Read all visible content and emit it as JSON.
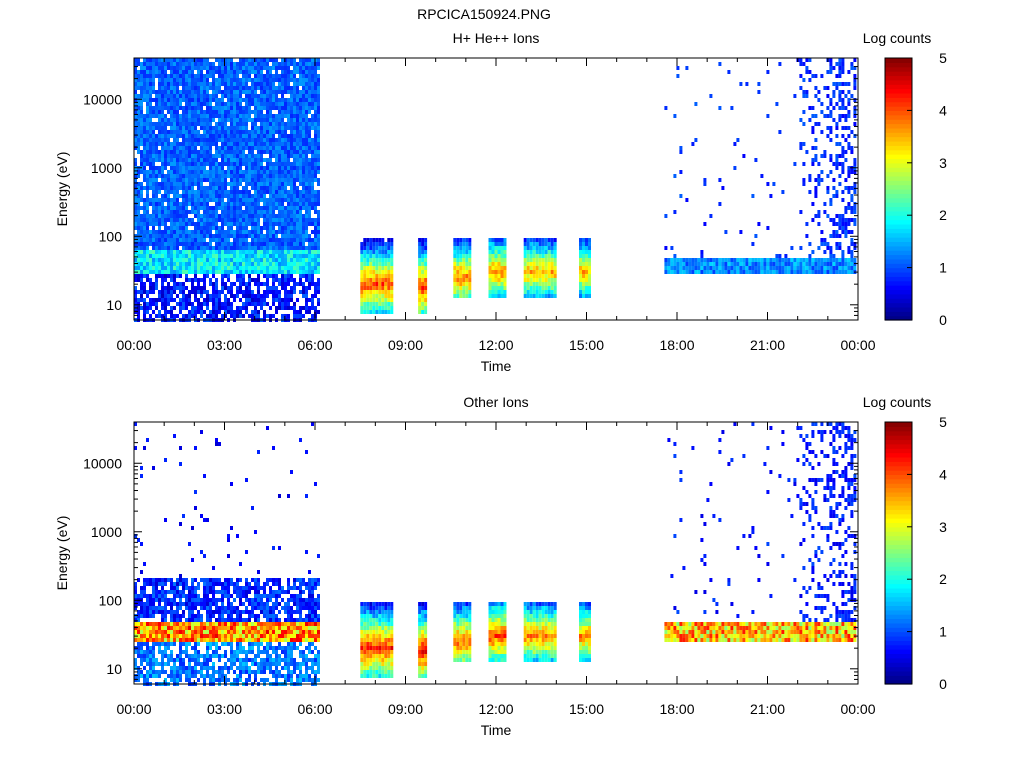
{
  "figure_title": "RPCICA150924.PNG",
  "chart_data": [
    {
      "type": "heatmap",
      "title": "H+ He++ Ions",
      "xlabel": "Time",
      "ylabel": "Energy (eV)",
      "x_ticks": [
        "00:00",
        "03:00",
        "06:00",
        "09:00",
        "12:00",
        "15:00",
        "18:00",
        "21:00",
        "00:00"
      ],
      "xlim_hours": [
        0,
        24
      ],
      "y_scale": "log",
      "y_ticks": [
        10,
        100,
        1000,
        10000
      ],
      "ylim": [
        6,
        40000
      ],
      "colorbar": {
        "label": "Log counts",
        "range": [
          0,
          5
        ],
        "ticks": [
          "0",
          "1",
          "2",
          "3",
          "4",
          "5"
        ]
      },
      "data_segments": [
        {
          "start": "00:00",
          "end": "06:05",
          "description": "continuous broad spectrum",
          "background_energy_max": 40000,
          "background_level": 1.1,
          "band_energy": [
            30,
            60
          ],
          "band_level": 1.8,
          "band_spread": 0.5,
          "low_energy_level": 0.7
        },
        {
          "start": "07:30",
          "end": "08:30",
          "peak_energy": 20,
          "peak_level": 4.0,
          "energy_range": [
            7,
            90
          ]
        },
        {
          "start": "09:25",
          "end": "09:40",
          "peak_energy": 18,
          "peak_level": 4.2,
          "energy_range": [
            7,
            90
          ]
        },
        {
          "start": "10:35",
          "end": "11:05",
          "peak_energy": 25,
          "peak_level": 3.8,
          "energy_range": [
            12,
            90
          ]
        },
        {
          "start": "11:45",
          "end": "12:20",
          "peak_energy": 30,
          "peak_level": 3.7,
          "energy_range": [
            12,
            90
          ]
        },
        {
          "start": "12:55",
          "end": "13:55",
          "peak_energy": 30,
          "peak_level": 3.5,
          "energy_range": [
            12,
            90
          ]
        },
        {
          "start": "14:45",
          "end": "15:05",
          "peak_energy": 30,
          "peak_level": 3.5,
          "energy_range": [
            12,
            90
          ]
        },
        {
          "start": "17:35",
          "end": "23:55",
          "description": "weak band with sparse high-energy counts",
          "band_energy": [
            30,
            50
          ],
          "band_level": 1.3,
          "sparse_counts_level": 0.6,
          "sparse_increase_after": "22:00"
        }
      ]
    },
    {
      "type": "heatmap",
      "title": "Other Ions",
      "xlabel": "Time",
      "ylabel": "Energy (eV)",
      "x_ticks": [
        "00:00",
        "03:00",
        "06:00",
        "09:00",
        "12:00",
        "15:00",
        "18:00",
        "21:00",
        "00:00"
      ],
      "xlim_hours": [
        0,
        24
      ],
      "y_scale": "log",
      "y_ticks": [
        10,
        100,
        1000,
        10000
      ],
      "ylim": [
        6,
        40000
      ],
      "colorbar": {
        "label": "Log counts",
        "range": [
          0,
          5
        ],
        "ticks": [
          "0",
          "1",
          "2",
          "3",
          "4",
          "5"
        ]
      },
      "data_segments": [
        {
          "start": "00:00",
          "end": "06:05",
          "description": "sparse high-energy counts, strong band",
          "sparse_counts_level": 0.4,
          "band_energy": [
            25,
            50
          ],
          "band_level": 3.6,
          "band_spread": 0.9,
          "upper_blue_energy": [
            60,
            200
          ],
          "upper_blue_level": 0.8,
          "low_energy_level": 1.2
        },
        {
          "start": "07:30",
          "end": "08:30",
          "peak_energy": 20,
          "peak_level": 4.2,
          "energy_range": [
            7,
            90
          ]
        },
        {
          "start": "09:25",
          "end": "09:40",
          "peak_energy": 18,
          "peak_level": 4.4,
          "energy_range": [
            7,
            90
          ]
        },
        {
          "start": "10:35",
          "end": "11:05",
          "peak_energy": 25,
          "peak_level": 3.9,
          "energy_range": [
            12,
            90
          ]
        },
        {
          "start": "11:45",
          "end": "12:20",
          "peak_energy": 30,
          "peak_level": 4.0,
          "energy_range": [
            12,
            90
          ]
        },
        {
          "start": "12:55",
          "end": "13:55",
          "peak_energy": 30,
          "peak_level": 3.7,
          "energy_range": [
            12,
            90
          ]
        },
        {
          "start": "14:45",
          "end": "15:05",
          "peak_energy": 30,
          "peak_level": 3.7,
          "energy_range": [
            12,
            90
          ]
        },
        {
          "start": "17:35",
          "end": "23:55",
          "description": "continuous band with sparse counts",
          "band_energy": [
            25,
            50
          ],
          "band_level": 3.4,
          "band_spread": 0.9,
          "sparse_counts_level": 0.5,
          "sparse_increase_after": "22:00"
        }
      ]
    }
  ]
}
